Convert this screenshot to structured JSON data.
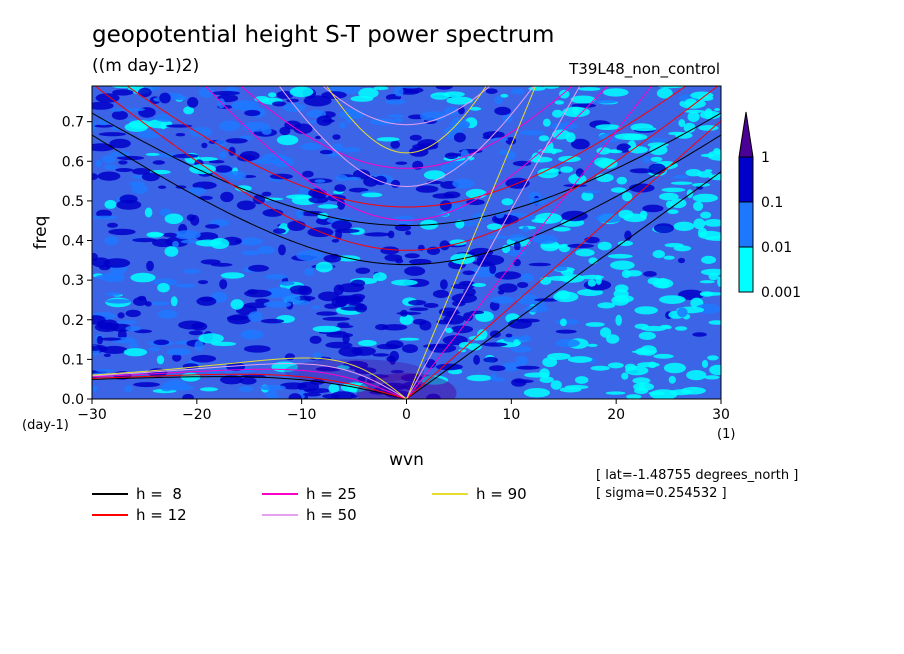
{
  "title": "geopotential height S-T power spectrum",
  "units": "((m day-1)2)",
  "run_name": "T39L48_non_control",
  "info_lines": [
    "[ lat=-1.48755 degrees_north ]",
    "[ sigma=0.254532 ]"
  ],
  "chart_data": {
    "type": "heatmap",
    "xlabel": "wvn",
    "ylabel": "freq",
    "x_unit": "(1)",
    "y_unit": "(day-1)",
    "xlim": [
      -30,
      30
    ],
    "ylim": [
      0,
      0.79
    ],
    "x_ticks": [
      -30,
      -20,
      -10,
      0,
      10,
      20,
      30
    ],
    "y_ticks": [
      0.0,
      0.1,
      0.2,
      0.3,
      0.4,
      0.5,
      0.6,
      0.7
    ],
    "colorbar": {
      "levels": [
        "0.001",
        "0.01",
        "0.1",
        "1"
      ],
      "colors": [
        "#00ffff",
        "#1e78ff",
        "#0000c8",
        "#4b0096"
      ],
      "extend": "max"
    },
    "background_color": "#3c64e6",
    "series": [
      {
        "name": "h =  8",
        "color": "#000000",
        "equivalent_depth": 8
      },
      {
        "name": "h = 12",
        "color": "#ff0000",
        "equivalent_depth": 12
      },
      {
        "name": "h = 25",
        "color": "#ff00c8",
        "equivalent_depth": 25
      },
      {
        "name": "h = 50",
        "color": "#e6a0f0",
        "equivalent_depth": 50
      },
      {
        "name": "h = 90",
        "color": "#e6dc32",
        "equivalent_depth": 90
      }
    ]
  }
}
